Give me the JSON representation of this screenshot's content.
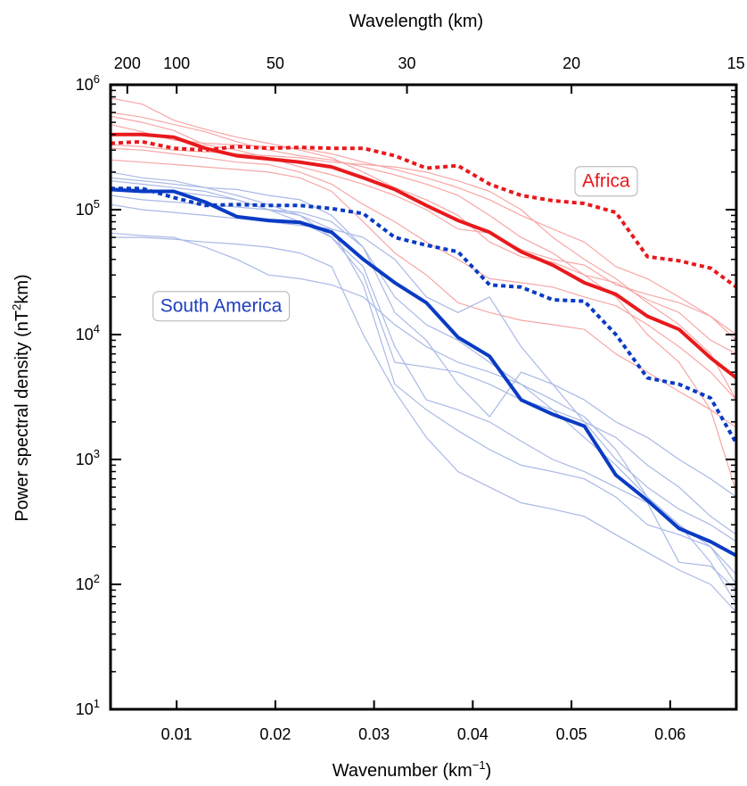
{
  "chart_data": {
    "type": "line",
    "xlabel": "Wavenumber (km",
    "xlabel_sup": "−1",
    "xlabel_tail": ")",
    "ylabel": "Power spectral density (nT",
    "ylabel_sup": "2",
    "ylabel_tail": "km)",
    "top_axis_label": "Wavelength (km)",
    "xlim": [
      0.0033,
      0.0667
    ],
    "ylim": [
      10,
      1000000
    ],
    "y_scale": "log",
    "x_ticks": [
      0.01,
      0.02,
      0.03,
      0.04,
      0.05,
      0.06
    ],
    "x_tick_labels": [
      "0.01",
      "0.02",
      "0.03",
      "0.04",
      "0.05",
      "0.06"
    ],
    "y_ticks": [
      {
        "value": 10,
        "base": "10",
        "exp": "1"
      },
      {
        "value": 100,
        "base": "10",
        "exp": "2"
      },
      {
        "value": 1000,
        "base": "10",
        "exp": "3"
      },
      {
        "value": 10000,
        "base": "10",
        "exp": "4"
      },
      {
        "value": 100000,
        "base": "10",
        "exp": "5"
      },
      {
        "value": 1000000,
        "base": "10",
        "exp": "6"
      }
    ],
    "top_ticks": [
      {
        "wavelength": 200,
        "label": "200"
      },
      {
        "wavelength": 100,
        "label": "100"
      },
      {
        "wavelength": 50,
        "label": "50"
      },
      {
        "wavelength": 30,
        "label": "30"
      },
      {
        "wavelength": 20,
        "label": "20"
      },
      {
        "wavelength": 15,
        "label": "15"
      }
    ],
    "annotations": [
      {
        "text": "Africa",
        "color": "#e8191c",
        "x": 0.0535,
        "y": 170000
      },
      {
        "text": "South America",
        "color": "#1e3fbf",
        "x": 0.0145,
        "y": 17000
      }
    ],
    "colors": {
      "africa": "#e8191c",
      "africa_thin": "#f7a6a6",
      "south_america": "#0a3bc4",
      "south_america_thin": "#a9b9e6"
    },
    "x": [
      0.0033,
      0.0065,
      0.0097,
      0.0129,
      0.0161,
      0.0193,
      0.0225,
      0.0257,
      0.0289,
      0.0321,
      0.0353,
      0.0385,
      0.0417,
      0.0449,
      0.0481,
      0.0513,
      0.0545,
      0.0577,
      0.0609,
      0.0641,
      0.0667
    ],
    "series": [
      {
        "group": "africa",
        "style": "solid",
        "values": [
          400000,
          400000,
          380000,
          310000,
          270000,
          255000,
          240000,
          220000,
          180000,
          145000,
          108000,
          82000,
          66000,
          46000,
          36000,
          26000,
          21000,
          14000,
          11000,
          6500,
          4500
        ]
      },
      {
        "group": "africa",
        "style": "dotted",
        "values": [
          340000,
          350000,
          310000,
          300000,
          320000,
          310000,
          315000,
          310000,
          310000,
          270000,
          215000,
          225000,
          160000,
          130000,
          118000,
          112000,
          95000,
          42000,
          39000,
          34000,
          24000
        ]
      },
      {
        "group": "south_america",
        "style": "solid",
        "values": [
          145000,
          140000,
          140000,
          115000,
          88000,
          82000,
          79000,
          66000,
          40000,
          26000,
          18000,
          9500,
          6700,
          3000,
          2300,
          1850,
          750,
          470,
          280,
          220,
          170
        ]
      },
      {
        "group": "south_america",
        "style": "dotted",
        "values": [
          148000,
          148000,
          125000,
          108000,
          110000,
          108000,
          108000,
          102000,
          93000,
          60000,
          52000,
          46000,
          25000,
          24000,
          19000,
          18500,
          10000,
          4500,
          4000,
          3100,
          1350
        ]
      },
      {
        "group": "africa",
        "style": "thin",
        "values": [
          780000,
          700000,
          520000,
          440000,
          380000,
          340000,
          300000,
          260000,
          200000,
          150000,
          120000,
          90000,
          55000,
          42000,
          38000,
          30000,
          26000,
          19000,
          15000,
          9000,
          7000
        ]
      },
      {
        "group": "africa",
        "style": "thin",
        "values": [
          560000,
          500000,
          430000,
          330000,
          300000,
          260000,
          220000,
          190000,
          160000,
          130000,
          100000,
          70000,
          65000,
          48000,
          40000,
          36000,
          25000,
          21000,
          18000,
          14000,
          10000
        ]
      },
      {
        "group": "africa",
        "style": "thin",
        "values": [
          310000,
          300000,
          280000,
          260000,
          240000,
          230000,
          200000,
          160000,
          110000,
          80000,
          55000,
          40000,
          28000,
          26000,
          24000,
          20000,
          17000,
          12000,
          8000,
          5000,
          3000
        ]
      },
      {
        "group": "africa",
        "style": "thin",
        "values": [
          480000,
          420000,
          360000,
          340000,
          330000,
          320000,
          310000,
          280000,
          240000,
          210000,
          180000,
          150000,
          120000,
          90000,
          70000,
          55000,
          35000,
          28000,
          20000,
          14000,
          9000
        ]
      },
      {
        "group": "africa",
        "style": "thin",
        "values": [
          250000,
          240000,
          230000,
          220000,
          210000,
          200000,
          180000,
          140000,
          80000,
          45000,
          30000,
          18000,
          15000,
          13000,
          12000,
          11000,
          7000,
          5000,
          3500,
          2500,
          1800
        ]
      },
      {
        "group": "africa",
        "style": "thin",
        "values": [
          330000,
          320000,
          300000,
          290000,
          280000,
          270000,
          260000,
          240000,
          230000,
          220000,
          200000,
          170000,
          140000,
          100000,
          60000,
          40000,
          28000,
          18000,
          12000,
          7000,
          3000
        ]
      },
      {
        "group": "africa",
        "style": "thin",
        "values": [
          600000,
          550000,
          480000,
          420000,
          350000,
          300000,
          270000,
          250000,
          220000,
          190000,
          160000,
          130000,
          90000,
          60000,
          45000,
          30000,
          20000,
          10000,
          6000,
          2500,
          550
        ]
      },
      {
        "group": "south_america",
        "style": "thin",
        "values": [
          200000,
          180000,
          170000,
          150000,
          130000,
          110000,
          90000,
          60000,
          30000,
          6000,
          5500,
          5000,
          4000,
          3000,
          2500,
          2000,
          1000,
          600,
          400,
          300,
          220
        ]
      },
      {
        "group": "south_america",
        "style": "thin",
        "values": [
          170000,
          160000,
          150000,
          140000,
          120000,
          100000,
          95000,
          80000,
          50000,
          20000,
          12000,
          9000,
          6000,
          4000,
          3000,
          2200,
          1200,
          500,
          300,
          200,
          100
        ]
      },
      {
        "group": "south_america",
        "style": "thin",
        "values": [
          130000,
          120000,
          115000,
          110000,
          105000,
          100000,
          90000,
          70000,
          25000,
          4000,
          2500,
          1700,
          1200,
          900,
          800,
          700,
          500,
          300,
          250,
          200,
          120
        ]
      },
      {
        "group": "south_america",
        "style": "thin",
        "values": [
          65000,
          62000,
          60000,
          50000,
          40000,
          30000,
          28000,
          25000,
          20000,
          12000,
          8000,
          6000,
          5000,
          4000,
          2500,
          1500,
          900,
          500,
          300,
          150,
          70
        ]
      },
      {
        "group": "south_america",
        "style": "thin",
        "values": [
          60000,
          60000,
          58000,
          55000,
          53000,
          50000,
          45000,
          35000,
          10000,
          3500,
          1500,
          800,
          600,
          450,
          400,
          350,
          250,
          180,
          130,
          100,
          60
        ]
      },
      {
        "group": "south_america",
        "style": "thin",
        "values": [
          180000,
          170000,
          160000,
          150000,
          145000,
          130000,
          120000,
          90000,
          50000,
          15000,
          9000,
          4000,
          2200,
          5000,
          4000,
          3000,
          2000,
          1500,
          1000,
          700,
          500
        ]
      },
      {
        "group": "south_america",
        "style": "thin",
        "values": [
          110000,
          100000,
          95000,
          90000,
          85000,
          80000,
          75000,
          70000,
          60000,
          40000,
          20000,
          15000,
          20000,
          8000,
          4000,
          2000,
          1500,
          900,
          600,
          350,
          250
        ]
      },
      {
        "group": "south_america",
        "style": "thin",
        "values": [
          150000,
          145000,
          140000,
          130000,
          120000,
          100000,
          80000,
          60000,
          35000,
          8000,
          3000,
          2500,
          2000,
          1400,
          1000,
          800,
          600,
          450,
          150,
          140,
          90
        ]
      }
    ]
  }
}
